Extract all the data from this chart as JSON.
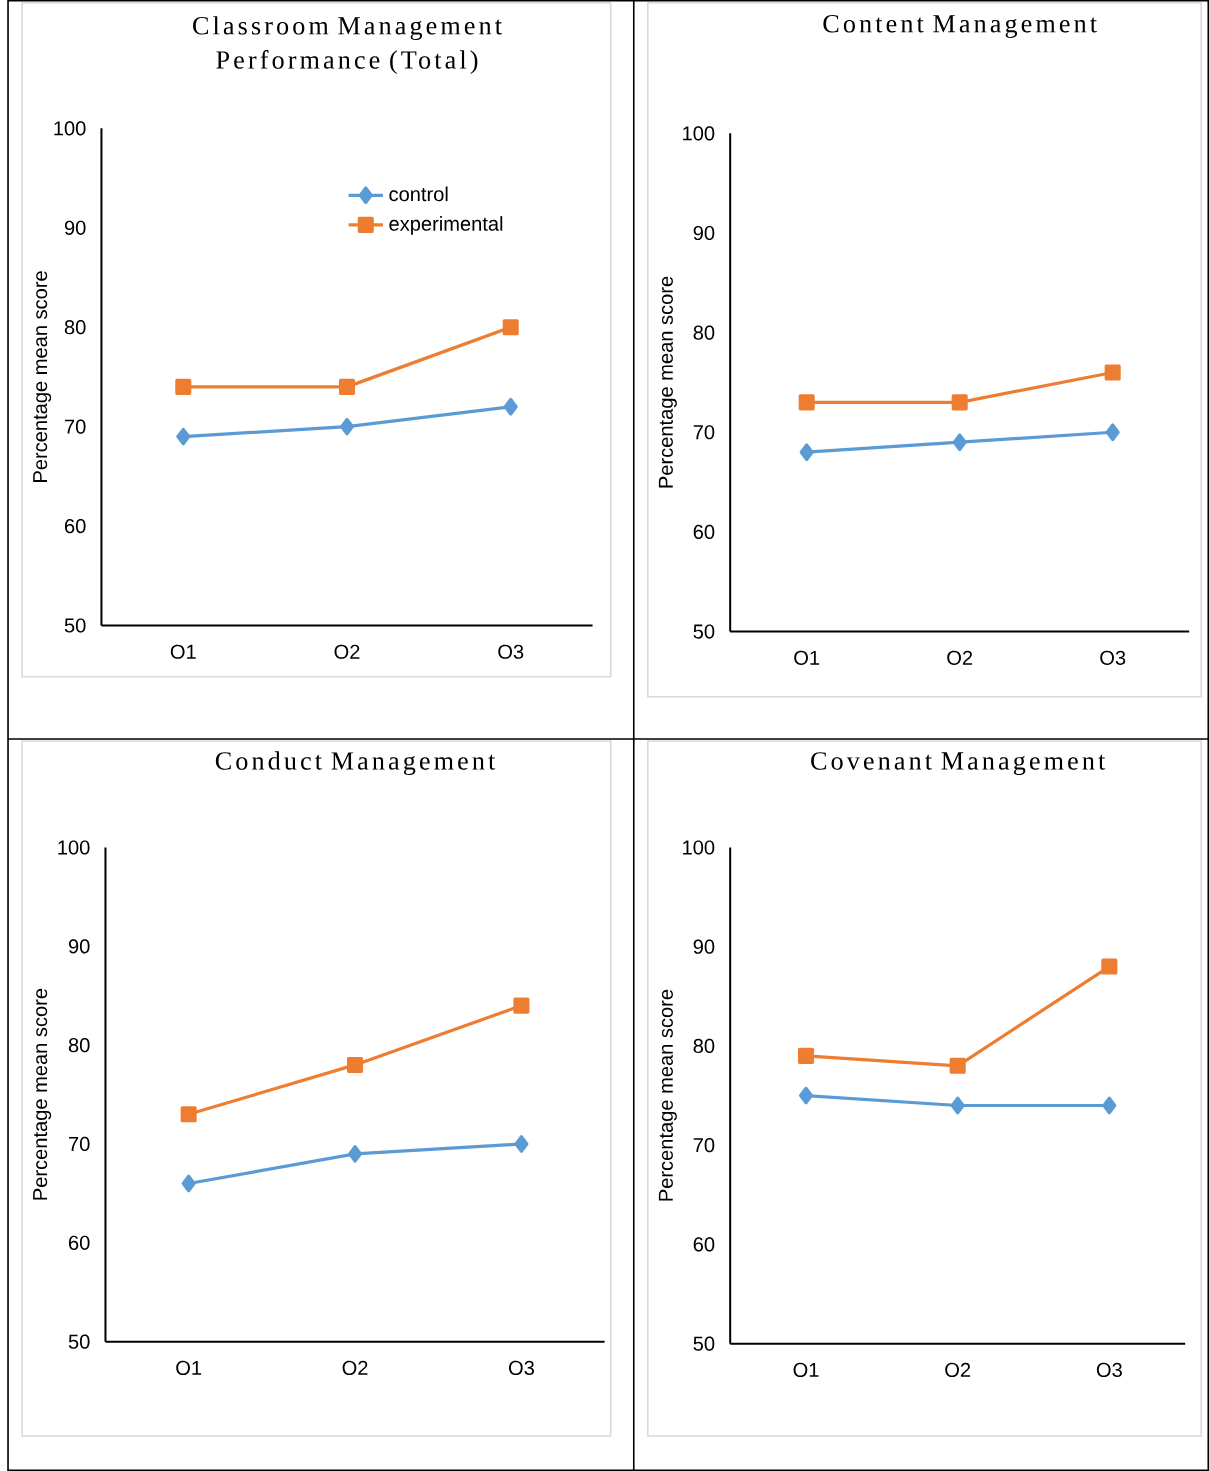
{
  "chart_data": [
    {
      "type": "line",
      "title": "Classroom Management Performance (Total)",
      "ylabel": "Percentage mean score",
      "categories": [
        "O1",
        "O2",
        "O3"
      ],
      "ylim": [
        50,
        100
      ],
      "yticks": [
        50,
        60,
        70,
        80,
        90,
        100
      ],
      "legend": "top right",
      "series": [
        {
          "name": "control",
          "color": "#5b9bd5",
          "marker": "diamond",
          "values": [
            69,
            70,
            72
          ]
        },
        {
          "name": "experimental",
          "color": "#ed7d31",
          "marker": "square",
          "values": [
            74,
            74,
            80
          ]
        }
      ]
    },
    {
      "type": "line",
      "title": "Content Management",
      "ylabel": "Percentage mean score",
      "categories": [
        "O1",
        "O2",
        "O3"
      ],
      "ylim": [
        50,
        100
      ],
      "yticks": [
        50,
        60,
        70,
        80,
        90,
        100
      ],
      "series": [
        {
          "color": "#5b9bd5",
          "marker": "diamond",
          "values": [
            68,
            69,
            70
          ]
        },
        {
          "color": "#ed7d31",
          "marker": "square",
          "values": [
            73,
            73,
            76
          ]
        }
      ]
    },
    {
      "type": "line",
      "title": "Conduct Management",
      "ylabel": "Percentage mean score",
      "categories": [
        "O1",
        "O2",
        "O3"
      ],
      "ylim": [
        50,
        100
      ],
      "yticks": [
        50,
        60,
        70,
        80,
        90,
        100
      ],
      "series": [
        {
          "color": "#5b9bd5",
          "marker": "diamond",
          "values": [
            66,
            69,
            70
          ]
        },
        {
          "color": "#ed7d31",
          "marker": "square",
          "values": [
            73,
            78,
            84
          ]
        }
      ]
    },
    {
      "type": "line",
      "title": "Covenant Management",
      "ylabel": "Percentage mean score",
      "categories": [
        "O1",
        "O2",
        "O3"
      ],
      "ylim": [
        50,
        100
      ],
      "yticks": [
        50,
        60,
        70,
        80,
        90,
        100
      ],
      "series": [
        {
          "color": "#5b9bd5",
          "marker": "diamond",
          "values": [
            75,
            74,
            74
          ]
        },
        {
          "color": "#ed7d31",
          "marker": "square",
          "values": [
            79,
            78,
            88
          ]
        }
      ]
    }
  ]
}
